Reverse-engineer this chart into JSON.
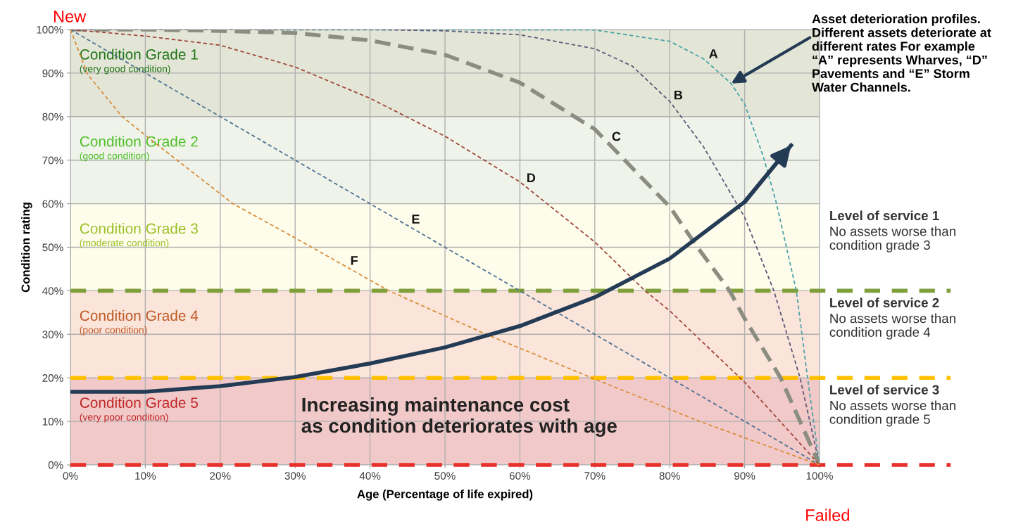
{
  "chart_data": {
    "type": "line",
    "xlabel": "Age (Percentage of life expired)",
    "ylabel": "Condition rating",
    "xlim": [
      0,
      100
    ],
    "ylim": [
      0,
      100
    ],
    "xticks": [
      {
        "value": 0,
        "label": "0%"
      },
      {
        "value": 10,
        "label": "10%"
      },
      {
        "value": 20,
        "label": "20%"
      },
      {
        "value": 30,
        "label": "30%"
      },
      {
        "value": 40,
        "label": "40%"
      },
      {
        "value": 50,
        "label": "50%"
      },
      {
        "value": 60,
        "label": "60%"
      },
      {
        "value": 70,
        "label": "70%"
      },
      {
        "value": 80,
        "label": "80%"
      },
      {
        "value": 90,
        "label": "90%"
      },
      {
        "value": 100,
        "label": "100%"
      }
    ],
    "yticks": [
      {
        "value": 0,
        "label": "0%"
      },
      {
        "value": 10,
        "label": "10%"
      },
      {
        "value": 20,
        "label": "20%"
      },
      {
        "value": 30,
        "label": "30%"
      },
      {
        "value": 40,
        "label": "40%"
      },
      {
        "value": 50,
        "label": "50%"
      },
      {
        "value": 60,
        "label": "60%"
      },
      {
        "value": 70,
        "label": "70%"
      },
      {
        "value": 80,
        "label": "80%"
      },
      {
        "value": 90,
        "label": "90%"
      },
      {
        "value": 100,
        "label": "100%"
      }
    ],
    "grid": true,
    "legend": false,
    "marker": "none",
    "series": [
      {
        "name": "A",
        "color": "#4aa3a8",
        "line_style": "dotted",
        "x": [
          0,
          70,
          80,
          84.5,
          88.2,
          90,
          92.5,
          94.2,
          96.9,
          98.4,
          100
        ],
        "values": [
          100,
          99.9,
          97.3,
          93.3,
          87.6,
          82.9,
          70.8,
          60.4,
          40,
          20,
          0
        ]
      },
      {
        "name": "B",
        "color": "#5c5a7a",
        "line_style": "dotted",
        "x": [
          0,
          40,
          50,
          60,
          70,
          75,
          80,
          84.5,
          90,
          93.9,
          97.4,
          100
        ],
        "values": [
          100,
          100,
          99.7,
          98.8,
          95.6,
          91.6,
          83.5,
          73.1,
          56.9,
          40,
          20,
          0
        ]
      },
      {
        "name": "C",
        "color": "#8a8d80",
        "line_style": "dashed",
        "x": [
          0,
          10,
          20,
          30,
          40,
          50,
          60,
          70,
          80,
          83.7,
          88,
          90,
          94.8,
          100
        ],
        "values": [
          100,
          100,
          99.7,
          99.2,
          97.5,
          94.2,
          87.8,
          77.1,
          59.3,
          50,
          40,
          33.6,
          20,
          0
        ]
      },
      {
        "name": "D",
        "color": "#a0483a",
        "line_style": "dotted",
        "x": [
          0,
          10,
          20,
          30,
          40,
          50,
          60,
          70,
          76.7,
          80,
          90,
          100
        ],
        "values": [
          100,
          98.5,
          96.4,
          91.4,
          84.2,
          75.5,
          65,
          51.2,
          40,
          35.4,
          19,
          0
        ]
      },
      {
        "name": "E",
        "color": "#4f7396",
        "line_style": "dotted",
        "x": [
          0,
          100
        ],
        "values": [
          100,
          0
        ]
      },
      {
        "name": "F",
        "color": "#d98c3a",
        "line_style": "dotted",
        "x": [
          0,
          2.3,
          6.9,
          12,
          21.7,
          31.5,
          42.5,
          55.5,
          69.6,
          84,
          100
        ],
        "values": [
          100,
          89.7,
          80,
          73,
          60,
          50.7,
          40,
          30,
          20,
          10,
          0
        ]
      },
      {
        "color": "#243b55",
        "line_style": "solid",
        "x": [
          0,
          10,
          20,
          30,
          40,
          50,
          60,
          70,
          80,
          90,
          96.2
        ],
        "values": [
          16.8,
          16.8,
          18.1,
          20.2,
          23.3,
          27,
          31.9,
          38.5,
          47.4,
          60.4,
          73.4
        ]
      }
    ],
    "bands": [
      {
        "axis": "y",
        "from": 80,
        "to": 100,
        "label": "Condition Grade 1\n(very good condition)",
        "color": "#e3e6d6"
      },
      {
        "axis": "y",
        "from": 60,
        "to": 80,
        "label": "Condition Grade 2\n(good condition)",
        "color": "#eff3ea"
      },
      {
        "axis": "y",
        "from": 40,
        "to": 60,
        "label": "Condition Grade 3\n(moderate condition)",
        "color": "#fefdeb"
      },
      {
        "axis": "y",
        "from": 20,
        "to": 40,
        "label": "Condition Grade 4\n(poor condition)",
        "color": "#fbe5da"
      },
      {
        "axis": "y",
        "from": 0,
        "to": 20,
        "label": "Condition Grade 5\n(very poor condition)",
        "color": "#f2c9c9"
      }
    ],
    "ref_lines": [
      {
        "axis": "y",
        "value": 40,
        "label": "Level of service 1\nNo assets worse than\ncondition grade 3",
        "color": "#7f9f3a",
        "line_style": "dashed"
      },
      {
        "axis": "y",
        "value": 20,
        "label": "Level of service 2\nNo assets worse than\ncondition grade 4",
        "color": "#ffc000",
        "line_style": "dashed"
      },
      {
        "axis": "y",
        "value": 0,
        "label": "Level of service 3\nNo assets worse than\ncondition grade 5",
        "color": "#e8312a",
        "line_style": "dashed"
      }
    ],
    "annotations": [
      {
        "text": "New",
        "x": 0,
        "y": 100
      },
      {
        "text": "Failed",
        "x": 100,
        "y": 0
      },
      {
        "text": "Asset deterioration profiles.\nDifferent assets deteriorate at\ndifferent rates For example\n“A” represents Wharves, “D”\nPavements and “E” Storm\nWater Channels.",
        "x": 88.2,
        "y": 87.6
      },
      "Increasing maintenance cost\nas condition deteriorates with age"
    ]
  }
}
